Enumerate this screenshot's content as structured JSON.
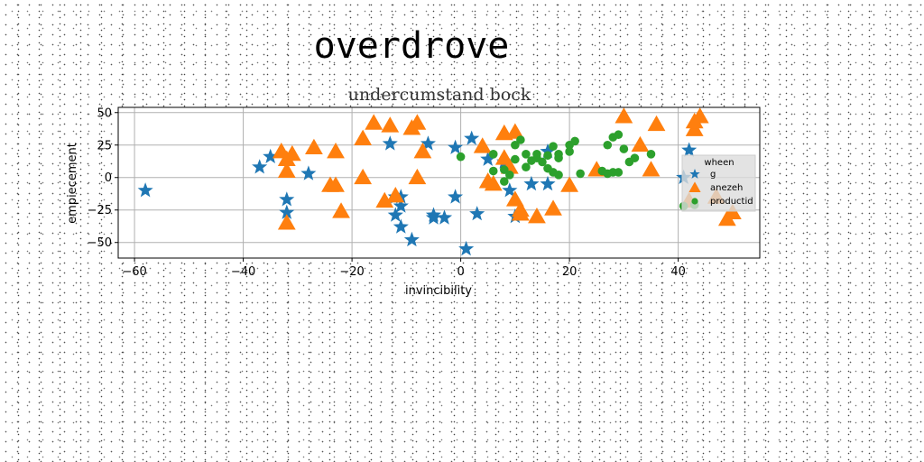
{
  "chart_data": {
    "type": "scatter",
    "suptitle": "overdrove",
    "title": "undercumstand bock",
    "xlabel": "invincibility",
    "ylabel": "empiecement",
    "xlim": [
      -63,
      55
    ],
    "ylim": [
      -62,
      54
    ],
    "xticks": [
      "−60",
      "−40",
      "−20",
      "0",
      "20",
      "40"
    ],
    "xtick_values": [
      -60,
      -40,
      -20,
      0,
      20,
      40
    ],
    "yticks": [
      "−50",
      "−25",
      "0",
      "25",
      "50"
    ],
    "ytick_values": [
      -50,
      -25,
      0,
      25,
      50
    ],
    "grid": true,
    "legend": {
      "title": "wheen",
      "placement": "right"
    },
    "series": [
      {
        "name": "g",
        "marker": "star",
        "color": "#1f77b4",
        "points": [
          [
            -58,
            -10
          ],
          [
            -37,
            8
          ],
          [
            -35,
            16
          ],
          [
            -32,
            -17
          ],
          [
            -32,
            -27
          ],
          [
            -28,
            3
          ],
          [
            -13,
            26
          ],
          [
            -12,
            -15
          ],
          [
            -12,
            -29
          ],
          [
            -11,
            -15
          ],
          [
            -11,
            -38
          ],
          [
            -11,
            -22
          ],
          [
            -9,
            -48
          ],
          [
            -6,
            26
          ],
          [
            -5,
            -29
          ],
          [
            -5,
            -31
          ],
          [
            -3,
            -31
          ],
          [
            -1,
            23
          ],
          [
            -1,
            -15
          ],
          [
            1,
            -55
          ],
          [
            2,
            30
          ],
          [
            3,
            -28
          ],
          [
            5,
            14
          ],
          [
            8,
            12
          ],
          [
            9,
            -10
          ],
          [
            10,
            -30
          ],
          [
            13,
            -5
          ],
          [
            16,
            20
          ],
          [
            16,
            -5
          ],
          [
            41,
            0
          ],
          [
            42,
            21
          ]
        ]
      },
      {
        "name": "anezeh",
        "marker": "triangle",
        "color": "#ff7f0e",
        "points": [
          [
            -33,
            20
          ],
          [
            -32,
            14
          ],
          [
            -32,
            5
          ],
          [
            -31,
            18
          ],
          [
            -32,
            -35
          ],
          [
            -27,
            23
          ],
          [
            -24,
            -6
          ],
          [
            -23,
            -6
          ],
          [
            -23,
            20
          ],
          [
            -22,
            -26
          ],
          [
            -18,
            30
          ],
          [
            -18,
            0
          ],
          [
            -16,
            42
          ],
          [
            -14,
            -18
          ],
          [
            -13,
            40
          ],
          [
            -12,
            -14
          ],
          [
            -9,
            38
          ],
          [
            -8,
            42
          ],
          [
            -8,
            0
          ],
          [
            -7,
            20
          ],
          [
            4,
            24
          ],
          [
            5,
            -3
          ],
          [
            6,
            -5
          ],
          [
            8,
            34
          ],
          [
            8,
            15
          ],
          [
            9,
            8
          ],
          [
            10,
            35
          ],
          [
            10,
            -17
          ],
          [
            11,
            -25
          ],
          [
            11,
            -28
          ],
          [
            14,
            -30
          ],
          [
            17,
            -24
          ],
          [
            20,
            -6
          ],
          [
            25,
            6
          ],
          [
            30,
            47
          ],
          [
            33,
            25
          ],
          [
            35,
            6
          ],
          [
            36,
            41
          ],
          [
            42,
            -18
          ],
          [
            43,
            37
          ],
          [
            43,
            43
          ],
          [
            44,
            47
          ],
          [
            47,
            -15
          ],
          [
            49,
            -32
          ],
          [
            50,
            -27
          ]
        ]
      },
      {
        "name": "productid",
        "marker": "circle",
        "color": "#2ca02c",
        "points": [
          [
            0,
            16
          ],
          [
            6,
            5
          ],
          [
            6,
            18
          ],
          [
            8,
            6
          ],
          [
            8,
            -3
          ],
          [
            9,
            2
          ],
          [
            10,
            25
          ],
          [
            10,
            14
          ],
          [
            11,
            29
          ],
          [
            12,
            18
          ],
          [
            12,
            8
          ],
          [
            13,
            13
          ],
          [
            14,
            15
          ],
          [
            14,
            18
          ],
          [
            15,
            12
          ],
          [
            16,
            17
          ],
          [
            16,
            7
          ],
          [
            17,
            24
          ],
          [
            17,
            4
          ],
          [
            18,
            15
          ],
          [
            18,
            18
          ],
          [
            18,
            2
          ],
          [
            20,
            25
          ],
          [
            20,
            20
          ],
          [
            21,
            28
          ],
          [
            22,
            3
          ],
          [
            26,
            5
          ],
          [
            27,
            3
          ],
          [
            27,
            25
          ],
          [
            28,
            31
          ],
          [
            28,
            4
          ],
          [
            29,
            33
          ],
          [
            29,
            4
          ],
          [
            30,
            22
          ],
          [
            31,
            12
          ],
          [
            32,
            15
          ],
          [
            35,
            18
          ],
          [
            41,
            -22
          ],
          [
            43,
            -21
          ]
        ]
      }
    ]
  }
}
